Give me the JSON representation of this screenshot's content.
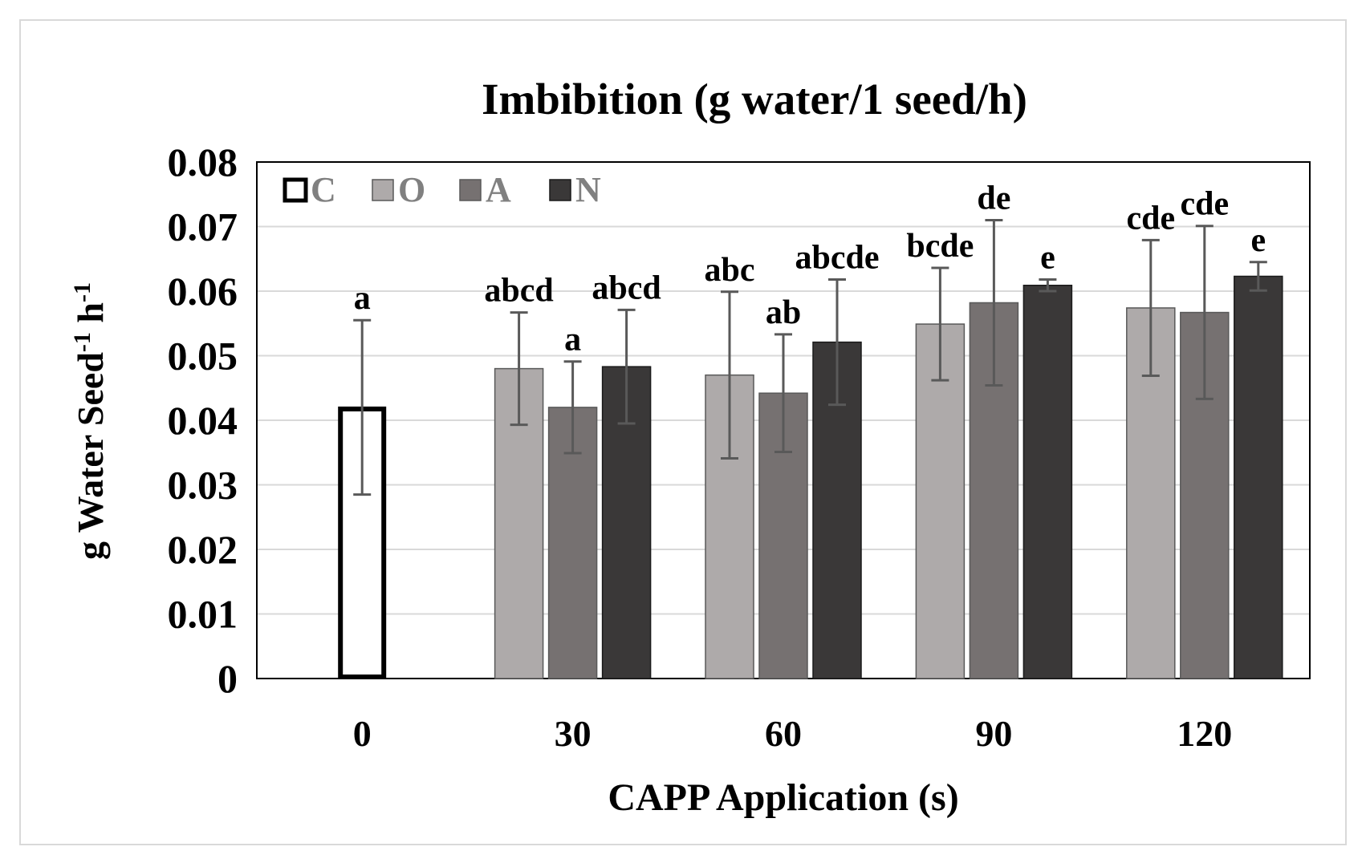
{
  "chart_data": {
    "type": "bar",
    "title": "Imbibition (g water/1  seed/h)",
    "xlabel": "CAPP Application (s)",
    "ylabel": {
      "parts": [
        {
          "text": "g Water Seed",
          "sup": false
        },
        {
          "text": "-1",
          "sup": true
        },
        {
          "text": " h",
          "sup": false
        },
        {
          "text": "-1",
          "sup": true
        }
      ]
    },
    "categories": [
      "0",
      "30",
      "60",
      "90",
      "120"
    ],
    "ylim": [
      0,
      0.08
    ],
    "yticks": [
      "0",
      "0.01",
      "0.02",
      "0.03",
      "0.04",
      "0.05",
      "0.06",
      "0.07",
      "0.08"
    ],
    "grid": true,
    "legend": {
      "placement": "top-left",
      "entries": [
        "C",
        "O",
        "A",
        "N"
      ]
    },
    "series": [
      {
        "name": "C",
        "color": "#ffffff",
        "outline": "#000000",
        "values": [
          0.042,
          null,
          null,
          null,
          null
        ],
        "err": [
          0.0135,
          null,
          null,
          null,
          null
        ],
        "labels": [
          "a",
          null,
          null,
          null,
          null
        ]
      },
      {
        "name": "O",
        "color": "#aeaaaa",
        "outline": "#595959",
        "values": [
          null,
          0.048,
          0.047,
          0.0549,
          0.0574
        ],
        "err": [
          null,
          0.0087,
          0.0129,
          0.0087,
          0.0105
        ],
        "labels": [
          null,
          "abcd",
          "abc",
          "bcde",
          "cde"
        ]
      },
      {
        "name": "A",
        "color": "#767171",
        "outline": "#595959",
        "values": [
          null,
          0.042,
          0.0442,
          0.0582,
          0.0567
        ],
        "err": [
          null,
          0.0071,
          0.0091,
          0.0128,
          0.0134
        ],
        "labels": [
          null,
          "a",
          "ab",
          "de",
          "cde"
        ]
      },
      {
        "name": "N",
        "color": "#3a3838",
        "outline": "#1a1a1a",
        "values": [
          null,
          0.0483,
          0.0521,
          0.0609,
          0.0623
        ],
        "err": [
          null,
          0.0088,
          0.0097,
          0.0009,
          0.0022
        ],
        "labels": [
          null,
          "abcd",
          "abcde",
          "e",
          "e"
        ]
      }
    ]
  }
}
